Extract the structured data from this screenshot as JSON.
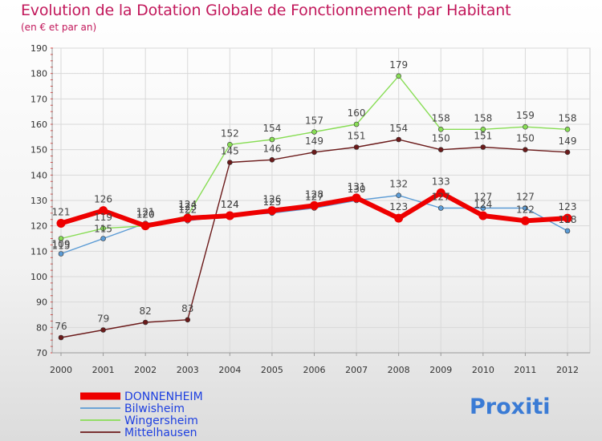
{
  "chart_data": {
    "type": "line",
    "title": "Evolution de la Dotation Globale de Fonctionnement par Habitant",
    "subtitle": "(en € et par an)",
    "xlabel": "",
    "ylabel": "",
    "categories": [
      "2000",
      "2001",
      "2002",
      "2003",
      "2004",
      "2005",
      "2006",
      "2007",
      "2008",
      "2009",
      "2010",
      "2011",
      "2012"
    ],
    "ylim": [
      70,
      190
    ],
    "yticks": [
      70,
      80,
      90,
      100,
      110,
      120,
      130,
      140,
      150,
      160,
      170,
      180,
      190
    ],
    "grid": true,
    "legend_position": "bottom-left",
    "series": [
      {
        "name": "Bilwisheim",
        "color": "#5b9bd5",
        "values": [
          109,
          115,
          121,
          122,
          124,
          125,
          127,
          130,
          132,
          127,
          127,
          127,
          118
        ]
      },
      {
        "name": "Wingersheim",
        "color": "#88dd55",
        "values": [
          115,
          119,
          120,
          124,
          152,
          154,
          157,
          160,
          179,
          158,
          158,
          159,
          158
        ]
      },
      {
        "name": "Mittelhausen",
        "color": "#6b1a1a",
        "values": [
          76,
          79,
          82,
          83,
          145,
          146,
          149,
          151,
          154,
          150,
          151,
          150,
          149
        ]
      },
      {
        "name": "DONNENHEIM",
        "color": "#ee0000",
        "values": [
          121,
          126,
          120,
          123,
          124,
          126,
          128,
          131,
          123,
          133,
          124,
          122,
          123
        ]
      }
    ]
  },
  "logo": {
    "text": "Proxiti"
  }
}
